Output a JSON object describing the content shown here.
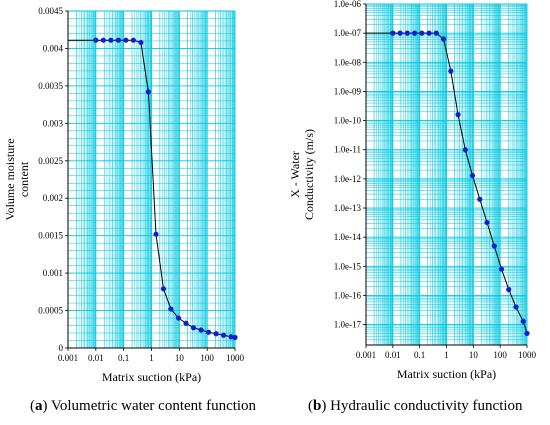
{
  "captions": {
    "left_tag": "a",
    "left_text": " Volumetric water content function",
    "right_tag": "b",
    "right_text": " Hydraulic conductivity function"
  },
  "chart_data": [
    {
      "type": "line",
      "xlabel": "Matrix suction (kPa)",
      "ylabel": [
        "Volume moisture",
        "content"
      ],
      "xscale": "log",
      "xlim": [
        0.001,
        1000
      ],
      "ylim": [
        0,
        0.0045
      ],
      "x_ticks": [
        "0.001",
        "0.01",
        "0.1",
        "1",
        "10",
        "100",
        "1000"
      ],
      "y_ticks": [
        "0",
        "0.0005",
        "0.001",
        "0.0015",
        "0.002",
        "0.0025",
        "0.003",
        "0.0035",
        "0.004",
        "0.0045"
      ],
      "grid": true,
      "grid_color": "#00c8e0",
      "line_color": "#000000",
      "marker_color": "#0a1fd4",
      "points": [
        {
          "x": 0.01,
          "y": 0.00411
        },
        {
          "x": 0.0186,
          "y": 0.00411
        },
        {
          "x": 0.0347,
          "y": 0.00411
        },
        {
          "x": 0.0646,
          "y": 0.00411
        },
        {
          "x": 0.12,
          "y": 0.00411
        },
        {
          "x": 0.224,
          "y": 0.00411
        },
        {
          "x": 0.417,
          "y": 0.00408
        },
        {
          "x": 0.776,
          "y": 0.00342
        },
        {
          "x": 1.45,
          "y": 0.00152
        },
        {
          "x": 2.69,
          "y": 0.00079
        },
        {
          "x": 5.01,
          "y": 0.00052
        },
        {
          "x": 9.33,
          "y": 0.0004
        },
        {
          "x": 17.4,
          "y": 0.00033
        },
        {
          "x": 32.4,
          "y": 0.00027
        },
        {
          "x": 60.3,
          "y": 0.00024
        },
        {
          "x": 112,
          "y": 0.00021
        },
        {
          "x": 209,
          "y": 0.00019
        },
        {
          "x": 389,
          "y": 0.00017
        },
        {
          "x": 724,
          "y": 0.00015
        },
        {
          "x": 1000,
          "y": 0.00014
        }
      ]
    },
    {
      "type": "line",
      "xlabel": "Matrix suction (kPa)",
      "ylabel": [
        "X - Water",
        "Conductivity (m/s)"
      ],
      "xscale": "log",
      "yscale": "log",
      "xlim": [
        0.001,
        1000
      ],
      "ylim": [
        -17.7,
        -6
      ],
      "x_ticks": [
        "0.001",
        "0.01",
        "0.1",
        "1",
        "10",
        "100",
        "1000"
      ],
      "y_ticks": [
        "1.0e-06",
        "1.0e-07",
        "1.0e-08",
        "1.0e-09",
        "1.0e-10",
        "1.0e-11",
        "1.0e-12",
        "1.0e-13",
        "1.0e-14",
        "1.0e-15",
        "1.0e-16",
        "1.0e-17"
      ],
      "grid": true,
      "grid_color": "#00c8e0",
      "line_color": "#000000",
      "marker_color": "#0a1fd4",
      "points": [
        {
          "x": 0.01,
          "y": 1e-07
        },
        {
          "x": 0.0186,
          "y": 1e-07
        },
        {
          "x": 0.0347,
          "y": 1e-07
        },
        {
          "x": 0.0646,
          "y": 1e-07
        },
        {
          "x": 0.12,
          "y": 1e-07
        },
        {
          "x": 0.224,
          "y": 1e-07
        },
        {
          "x": 0.417,
          "y": 1e-07
        },
        {
          "x": 0.776,
          "y": 6.3e-08
        },
        {
          "x": 1.45,
          "y": 5e-09
        },
        {
          "x": 2.69,
          "y": 1.6e-10
        },
        {
          "x": 5.01,
          "y": 1e-11
        },
        {
          "x": 9.33,
          "y": 1.3e-12
        },
        {
          "x": 17.4,
          "y": 2e-13
        },
        {
          "x": 32.4,
          "y": 3.2e-14
        },
        {
          "x": 60.3,
          "y": 5e-15
        },
        {
          "x": 112,
          "y": 8e-16
        },
        {
          "x": 209,
          "y": 1.6e-16
        },
        {
          "x": 389,
          "y": 4e-17
        },
        {
          "x": 724,
          "y": 1.3e-17
        },
        {
          "x": 1000,
          "y": 5e-18
        }
      ]
    }
  ]
}
